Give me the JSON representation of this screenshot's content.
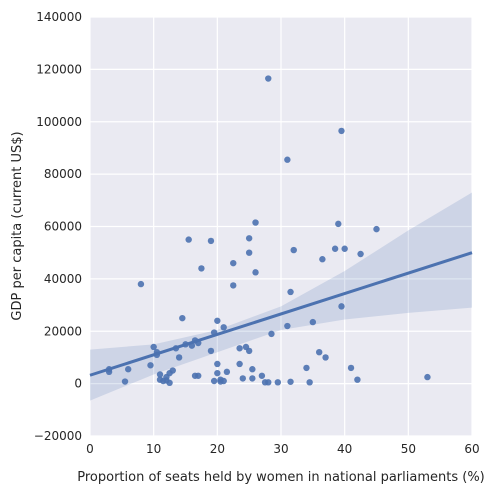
{
  "chart_data": {
    "type": "scatter",
    "style": "seaborn-darkgrid",
    "background_color": "#eaeaf2",
    "grid_color": "#ffffff",
    "point_color": "#4c72b0",
    "fit_line_color": "#4c72b0",
    "confidence_band_color": "#4c72b0",
    "xlabel": "Proportion of seats held by women in national parliaments (%)",
    "ylabel": "GDP per capita (current US$)",
    "xlim": [
      0,
      60
    ],
    "ylim": [
      -20000,
      140000
    ],
    "x_ticks": [
      0,
      10,
      20,
      30,
      40,
      50,
      60
    ],
    "y_ticks": [
      -20000,
      0,
      20000,
      40000,
      60000,
      80000,
      100000,
      120000,
      140000
    ],
    "x_tick_labels": [
      "0",
      "10",
      "20",
      "30",
      "40",
      "50",
      "60"
    ],
    "y_tick_labels": [
      "−20000",
      "0",
      "20000",
      "40000",
      "60000",
      "80000",
      "100000",
      "120000",
      "140000"
    ],
    "grid": true,
    "regression": {
      "x": [
        0,
        60
      ],
      "y": [
        3200,
        50000
      ]
    },
    "confidence_band": {
      "x": [
        0,
        10,
        20,
        30,
        40,
        50,
        60
      ],
      "lower": [
        -6500,
        3500,
        12000,
        20500,
        24500,
        27000,
        29000
      ],
      "upper": [
        13000,
        15000,
        20500,
        29500,
        43000,
        58500,
        73000
      ]
    },
    "points": [
      {
        "x": 3,
        "y": 4500
      },
      {
        "x": 3,
        "y": 5500
      },
      {
        "x": 5.5,
        "y": 800
      },
      {
        "x": 6,
        "y": 5500
      },
      {
        "x": 8,
        "y": 38000
      },
      {
        "x": 9.5,
        "y": 7000
      },
      {
        "x": 10,
        "y": 14000
      },
      {
        "x": 10.5,
        "y": 11000
      },
      {
        "x": 10.5,
        "y": 12000
      },
      {
        "x": 11,
        "y": 1500
      },
      {
        "x": 11,
        "y": 3500
      },
      {
        "x": 11.5,
        "y": 1000
      },
      {
        "x": 12,
        "y": 2500
      },
      {
        "x": 12,
        "y": 1200
      },
      {
        "x": 12.5,
        "y": 4000
      },
      {
        "x": 12.5,
        "y": 300
      },
      {
        "x": 13,
        "y": 5000
      },
      {
        "x": 13.5,
        "y": 13500
      },
      {
        "x": 14,
        "y": 10000
      },
      {
        "x": 14.5,
        "y": 25000
      },
      {
        "x": 15,
        "y": 15000
      },
      {
        "x": 15.5,
        "y": 55000
      },
      {
        "x": 16,
        "y": 14500
      },
      {
        "x": 16.5,
        "y": 16500
      },
      {
        "x": 16.5,
        "y": 3000
      },
      {
        "x": 17,
        "y": 3000
      },
      {
        "x": 17,
        "y": 15500
      },
      {
        "x": 17.5,
        "y": 44000
      },
      {
        "x": 19,
        "y": 12500
      },
      {
        "x": 19,
        "y": 54500
      },
      {
        "x": 19.5,
        "y": 19500
      },
      {
        "x": 19.5,
        "y": 1000
      },
      {
        "x": 20,
        "y": 24000
      },
      {
        "x": 20,
        "y": 7500
      },
      {
        "x": 20,
        "y": 4000
      },
      {
        "x": 20.5,
        "y": 800
      },
      {
        "x": 20.5,
        "y": 1500
      },
      {
        "x": 21,
        "y": 21500
      },
      {
        "x": 21,
        "y": 1000
      },
      {
        "x": 21.5,
        "y": 4500
      },
      {
        "x": 22.5,
        "y": 37500
      },
      {
        "x": 22.5,
        "y": 46000
      },
      {
        "x": 23.5,
        "y": 7500
      },
      {
        "x": 23.5,
        "y": 13500
      },
      {
        "x": 24,
        "y": 2000
      },
      {
        "x": 24.5,
        "y": 14000
      },
      {
        "x": 25,
        "y": 12500
      },
      {
        "x": 25,
        "y": 50000
      },
      {
        "x": 25,
        "y": 55500
      },
      {
        "x": 25.5,
        "y": 5500
      },
      {
        "x": 25.5,
        "y": 2000
      },
      {
        "x": 26,
        "y": 61500
      },
      {
        "x": 26,
        "y": 42500
      },
      {
        "x": 27,
        "y": 3000
      },
      {
        "x": 27.5,
        "y": 500
      },
      {
        "x": 28,
        "y": 500
      },
      {
        "x": 28,
        "y": 116500
      },
      {
        "x": 28.5,
        "y": 19000
      },
      {
        "x": 29.5,
        "y": 500
      },
      {
        "x": 31,
        "y": 85500
      },
      {
        "x": 31,
        "y": 22000
      },
      {
        "x": 31.5,
        "y": 35000
      },
      {
        "x": 31.5,
        "y": 700
      },
      {
        "x": 32,
        "y": 51000
      },
      {
        "x": 34,
        "y": 6000
      },
      {
        "x": 34.5,
        "y": 500
      },
      {
        "x": 35,
        "y": 23500
      },
      {
        "x": 36,
        "y": 12000
      },
      {
        "x": 36.5,
        "y": 47500
      },
      {
        "x": 37,
        "y": 10000
      },
      {
        "x": 38.5,
        "y": 51500
      },
      {
        "x": 39,
        "y": 61000
      },
      {
        "x": 39.5,
        "y": 96500
      },
      {
        "x": 39.5,
        "y": 29500
      },
      {
        "x": 40,
        "y": 51500
      },
      {
        "x": 41,
        "y": 6000
      },
      {
        "x": 42,
        "y": 1500
      },
      {
        "x": 42.5,
        "y": 49500
      },
      {
        "x": 45,
        "y": 59000
      },
      {
        "x": 53,
        "y": 2500
      }
    ]
  }
}
